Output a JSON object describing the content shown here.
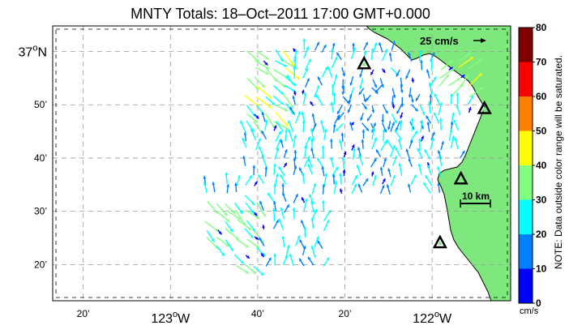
{
  "title": "MNTY Totals: 18–Oct–2011 17:00 GMT+0.000",
  "axes": {
    "y_ticks": [
      {
        "label_main": "37",
        "label_sup": "o",
        "label_suffix": "N",
        "value": 37.0
      },
      {
        "label": "50’",
        "value": 36.8333
      },
      {
        "label": "40’",
        "value": 36.6667
      },
      {
        "label": "30’",
        "value": 36.5
      },
      {
        "label": "20’",
        "value": 36.3333
      }
    ],
    "x_ticks": [
      {
        "label": "20’",
        "value": -123.3333
      },
      {
        "label_main": "123",
        "label_sup": "o",
        "label_suffix": "W",
        "value": -123.0
      },
      {
        "label": "40’",
        "value": -122.6667
      },
      {
        "label": "20’",
        "value": -122.3333
      },
      {
        "label_main": "122",
        "label_sup": "o",
        "label_suffix": "W",
        "value": -122.0
      }
    ],
    "lon_range": [
      -123.45,
      -121.7
    ],
    "lat_range": [
      36.22,
      37.08
    ],
    "grid": true
  },
  "scale_arrow": {
    "label": "25 cm/s"
  },
  "scale_bar": {
    "label": "10 km"
  },
  "colorbar": {
    "ticks": [
      "80",
      "70",
      "60",
      "50",
      "40",
      "30",
      "20",
      "10",
      "0"
    ],
    "unit": "cm/s",
    "colors": [
      "#0000ff",
      "#0080ff",
      "#00ffff",
      "#80ff80",
      "#ffff00",
      "#ff8000",
      "#ff0000",
      "#800000"
    ],
    "range": [
      0,
      80
    ]
  },
  "note": "NOTE: Data outside color range will be saturated.",
  "colors": {
    "land": "#7ee87e",
    "coast": "#000000",
    "grid": "#999999"
  },
  "stations": [
    {
      "lon": -122.26,
      "lat": 36.96
    },
    {
      "lon": -121.8,
      "lat": 36.82
    },
    {
      "lon": -121.89,
      "lat": 36.6
    },
    {
      "lon": -121.97,
      "lat": 36.4
    }
  ]
}
